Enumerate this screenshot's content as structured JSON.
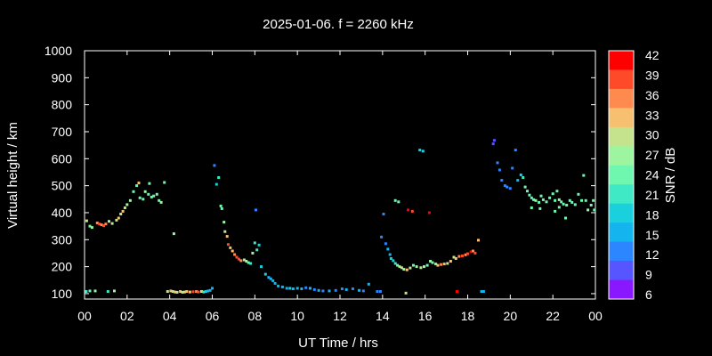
{
  "chart_data": {
    "type": "scatter",
    "title": "2025-01-06. f = 2260 kHz",
    "xlabel": "UT Time / hrs",
    "ylabel": "Virtual height / km",
    "xlim": [
      0,
      24
    ],
    "ylim": [
      80,
      1000
    ],
    "x_ticks": [
      "00",
      "02",
      "04",
      "06",
      "08",
      "10",
      "12",
      "14",
      "16",
      "18",
      "20",
      "22",
      "00"
    ],
    "y_ticks": [
      "100",
      "200",
      "300",
      "400",
      "500",
      "600",
      "700",
      "800",
      "900",
      "1000"
    ],
    "colorbar": {
      "label": "SNR / dB",
      "ticks": [
        "42",
        "39",
        "36",
        "33",
        "30",
        "27",
        "24",
        "21",
        "18",
        "15",
        "12",
        "9",
        "6"
      ],
      "bands": [
        "#ff0000",
        "#ff4a2a",
        "#ff8a50",
        "#f7c071",
        "#c5e38c",
        "#9df5a0",
        "#6ff7b0",
        "#3fe9c6",
        "#1ad0dc",
        "#14b4ee",
        "#2c86ff",
        "#5655ff",
        "#8a18ff"
      ]
    },
    "points": [
      [
        0.08,
        108,
        21
      ],
      [
        0.25,
        110,
        24
      ],
      [
        0.5,
        110,
        27
      ],
      [
        1.1,
        108,
        22
      ],
      [
        1.4,
        110,
        26
      ],
      [
        0.1,
        370,
        30
      ],
      [
        0.25,
        350,
        24
      ],
      [
        0.35,
        345,
        27
      ],
      [
        0.6,
        362,
        36
      ],
      [
        0.7,
        358,
        39
      ],
      [
        0.8,
        355,
        36
      ],
      [
        0.9,
        352,
        39
      ],
      [
        1.0,
        358,
        36
      ],
      [
        1.15,
        368,
        27
      ],
      [
        1.3,
        360,
        30
      ],
      [
        1.5,
        372,
        30
      ],
      [
        1.6,
        380,
        33
      ],
      [
        1.7,
        395,
        30
      ],
      [
        1.8,
        405,
        33
      ],
      [
        1.9,
        418,
        30
      ],
      [
        2.0,
        430,
        27
      ],
      [
        2.15,
        445,
        27
      ],
      [
        2.3,
        478,
        24
      ],
      [
        2.45,
        500,
        24
      ],
      [
        2.55,
        510,
        33
      ],
      [
        2.6,
        455,
        24
      ],
      [
        2.75,
        450,
        24
      ],
      [
        2.85,
        478,
        27
      ],
      [
        3.0,
        468,
        24
      ],
      [
        3.05,
        508,
        24
      ],
      [
        3.15,
        458,
        24
      ],
      [
        3.25,
        462,
        24
      ],
      [
        3.4,
        468,
        24
      ],
      [
        3.5,
        445,
        24
      ],
      [
        3.6,
        438,
        27
      ],
      [
        3.75,
        512,
        24
      ],
      [
        4.2,
        322,
        27
      ],
      [
        3.9,
        108,
        30
      ],
      [
        4.05,
        110,
        33
      ],
      [
        4.15,
        108,
        30
      ],
      [
        4.25,
        106,
        33
      ],
      [
        4.35,
        105,
        30
      ],
      [
        4.5,
        108,
        33
      ],
      [
        4.6,
        105,
        30
      ],
      [
        4.7,
        106,
        30
      ],
      [
        4.8,
        108,
        33
      ],
      [
        4.95,
        106,
        33
      ],
      [
        5.1,
        107,
        39
      ],
      [
        5.25,
        108,
        36
      ],
      [
        5.35,
        106,
        39
      ],
      [
        5.5,
        108,
        30
      ],
      [
        5.6,
        106,
        21
      ],
      [
        5.7,
        108,
        18
      ],
      [
        5.8,
        110,
        15
      ],
      [
        5.9,
        112,
        15
      ],
      [
        6.0,
        120,
        15
      ],
      [
        6.1,
        575,
        12
      ],
      [
        6.2,
        505,
        18
      ],
      [
        6.3,
        530,
        21
      ],
      [
        6.4,
        425,
        24
      ],
      [
        6.45,
        415,
        24
      ],
      [
        6.55,
        365,
        27
      ],
      [
        6.6,
        330,
        30
      ],
      [
        6.7,
        312,
        33
      ],
      [
        6.75,
        282,
        39
      ],
      [
        6.85,
        270,
        33
      ],
      [
        6.95,
        258,
        33
      ],
      [
        7.05,
        245,
        36
      ],
      [
        7.15,
        235,
        39
      ],
      [
        7.25,
        228,
        39
      ],
      [
        7.35,
        222,
        36
      ],
      [
        7.5,
        225,
        30
      ],
      [
        7.6,
        220,
        27
      ],
      [
        7.7,
        215,
        24
      ],
      [
        7.8,
        212,
        21
      ],
      [
        7.9,
        250,
        27
      ],
      [
        8.0,
        288,
        21
      ],
      [
        8.1,
        262,
        21
      ],
      [
        8.2,
        280,
        18
      ],
      [
        8.05,
        410,
        12
      ],
      [
        8.3,
        200,
        18
      ],
      [
        8.5,
        172,
        18
      ],
      [
        8.65,
        160,
        15
      ],
      [
        8.75,
        155,
        15
      ],
      [
        8.85,
        148,
        15
      ],
      [
        8.95,
        138,
        15
      ],
      [
        9.1,
        128,
        15
      ],
      [
        9.3,
        125,
        15
      ],
      [
        9.5,
        120,
        15
      ],
      [
        9.65,
        120,
        18
      ],
      [
        9.8,
        118,
        15
      ],
      [
        10.0,
        120,
        15
      ],
      [
        10.2,
        118,
        15
      ],
      [
        10.4,
        122,
        12
      ],
      [
        10.6,
        120,
        15
      ],
      [
        10.8,
        115,
        12
      ],
      [
        11.0,
        112,
        15
      ],
      [
        11.2,
        110,
        12
      ],
      [
        11.5,
        110,
        15
      ],
      [
        11.8,
        112,
        12
      ],
      [
        12.1,
        118,
        12
      ],
      [
        12.3,
        115,
        15
      ],
      [
        12.6,
        118,
        12
      ],
      [
        12.9,
        112,
        15
      ],
      [
        13.1,
        110,
        12
      ],
      [
        13.35,
        135,
        15
      ],
      [
        13.75,
        108,
        12
      ],
      [
        13.9,
        108,
        12
      ],
      [
        15.1,
        102,
        30
      ],
      [
        13.95,
        310,
        12
      ],
      [
        14.05,
        395,
        12
      ],
      [
        14.15,
        285,
        12
      ],
      [
        14.25,
        265,
        15
      ],
      [
        14.35,
        245,
        15
      ],
      [
        14.4,
        230,
        18
      ],
      [
        14.5,
        222,
        18
      ],
      [
        14.6,
        212,
        21
      ],
      [
        14.7,
        205,
        24
      ],
      [
        14.8,
        200,
        27
      ],
      [
        14.9,
        196,
        30
      ],
      [
        15.0,
        190,
        27
      ],
      [
        15.15,
        188,
        33
      ],
      [
        15.3,
        195,
        30
      ],
      [
        15.45,
        205,
        24
      ],
      [
        15.6,
        200,
        27
      ],
      [
        15.8,
        196,
        30
      ],
      [
        15.95,
        200,
        27
      ],
      [
        16.1,
        205,
        24
      ],
      [
        16.25,
        220,
        27
      ],
      [
        16.35,
        215,
        24
      ],
      [
        16.5,
        210,
        27
      ],
      [
        16.6,
        205,
        33
      ],
      [
        16.75,
        208,
        36
      ],
      [
        16.9,
        210,
        33
      ],
      [
        17.05,
        212,
        30
      ],
      [
        17.2,
        220,
        33
      ],
      [
        17.35,
        235,
        30
      ],
      [
        17.45,
        230,
        33
      ],
      [
        17.6,
        238,
        36
      ],
      [
        17.75,
        240,
        39
      ],
      [
        17.9,
        244,
        36
      ],
      [
        18.0,
        248,
        39
      ],
      [
        18.15,
        255,
        42
      ],
      [
        18.25,
        258,
        36
      ],
      [
        18.35,
        250,
        39
      ],
      [
        18.5,
        298,
        33
      ],
      [
        18.65,
        108,
        15
      ],
      [
        17.5,
        108,
        42
      ],
      [
        18.75,
        108,
        15
      ],
      [
        14.6,
        445,
        24
      ],
      [
        14.75,
        440,
        24
      ],
      [
        15.2,
        410,
        42
      ],
      [
        15.4,
        405,
        39
      ],
      [
        16.2,
        400,
        42
      ],
      [
        15.75,
        632,
        18
      ],
      [
        15.9,
        628,
        18
      ],
      [
        19.2,
        655,
        9
      ],
      [
        19.25,
        668,
        9
      ],
      [
        19.4,
        585,
        12
      ],
      [
        19.5,
        558,
        12
      ],
      [
        19.6,
        520,
        12
      ],
      [
        19.75,
        500,
        12
      ],
      [
        19.85,
        495,
        12
      ],
      [
        20.0,
        490,
        12
      ],
      [
        20.1,
        565,
        12
      ],
      [
        20.25,
        632,
        12
      ],
      [
        20.35,
        520,
        15
      ],
      [
        20.5,
        540,
        18
      ],
      [
        20.6,
        530,
        21
      ],
      [
        20.7,
        495,
        24
      ],
      [
        20.8,
        480,
        24
      ],
      [
        20.9,
        465,
        24
      ],
      [
        21.0,
        455,
        24
      ],
      [
        21.1,
        448,
        24
      ],
      [
        21.2,
        445,
        27
      ],
      [
        21.35,
        438,
        24
      ],
      [
        21.45,
        462,
        24
      ],
      [
        21.55,
        448,
        24
      ],
      [
        21.7,
        440,
        24
      ],
      [
        21.85,
        455,
        24
      ],
      [
        22.0,
        470,
        24
      ],
      [
        22.1,
        445,
        24
      ],
      [
        22.2,
        480,
        24
      ],
      [
        22.3,
        448,
        27
      ],
      [
        22.4,
        440,
        24
      ],
      [
        22.5,
        432,
        24
      ],
      [
        22.65,
        428,
        24
      ],
      [
        22.8,
        445,
        24
      ],
      [
        22.9,
        438,
        24
      ],
      [
        23.05,
        430,
        24
      ],
      [
        23.2,
        468,
        24
      ],
      [
        23.35,
        445,
        24
      ],
      [
        23.45,
        538,
        24
      ],
      [
        23.55,
        445,
        24
      ],
      [
        23.65,
        410,
        27
      ],
      [
        23.8,
        428,
        24
      ],
      [
        23.9,
        445,
        24
      ],
      [
        23.95,
        410,
        24
      ],
      [
        22.1,
        405,
        24
      ],
      [
        22.3,
        420,
        24
      ],
      [
        22.6,
        380,
        24
      ],
      [
        21.4,
        415,
        24
      ],
      [
        21.0,
        418,
        24
      ]
    ]
  }
}
